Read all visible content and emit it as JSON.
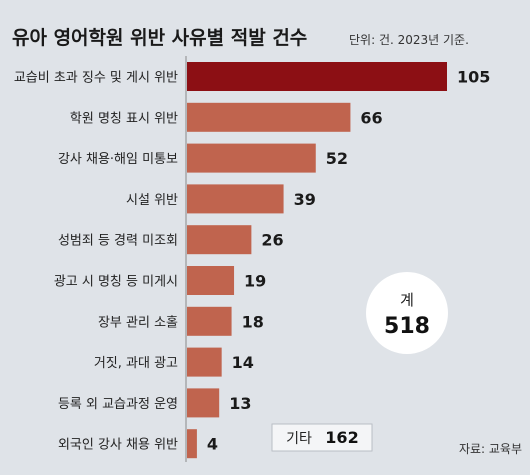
{
  "chart_data": {
    "type": "bar",
    "orientation": "horizontal",
    "title": "유아 영어학원 위반 사유별 적발 건수",
    "unit_note": "단위: 건. 2023년 기준.",
    "categories": [
      "교습비 초과 징수 및 게시 위반",
      "학원 명칭 표시 위반",
      "강사 채용·해임 미통보",
      "시설 위반",
      "성범죄 등 경력 미조회",
      "광고 시 명칭 등 미게시",
      "장부 관리 소홀",
      "거짓, 과대 광고",
      "등록 외  교습과정 운영",
      "외국인 강사 채용 위반"
    ],
    "values": [
      105,
      66,
      52,
      39,
      26,
      19,
      18,
      14,
      13,
      4
    ],
    "value_labels": [
      "105",
      "66",
      "52",
      "39",
      "26",
      "19",
      "18",
      "14",
      "13",
      "4"
    ],
    "xlim": [
      0,
      105
    ],
    "grid": false,
    "highlight_color": "#8c0f14",
    "bar_color": "#c0644e",
    "total": {
      "label": "계",
      "value": "518"
    },
    "other": {
      "label": "기타",
      "value": "162"
    },
    "source": "자료: 교육부"
  }
}
